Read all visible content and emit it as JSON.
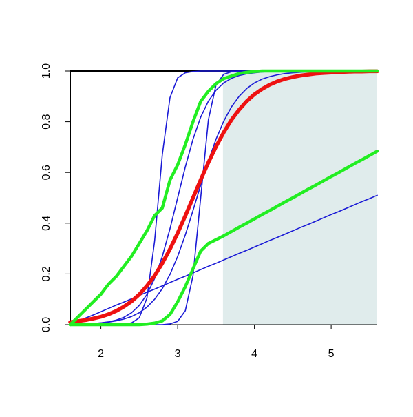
{
  "chart_data": {
    "type": "line",
    "x": [
      1.6,
      1.7,
      1.8,
      1.9,
      2.0,
      2.1,
      2.2,
      2.3,
      2.4,
      2.5,
      2.6,
      2.7,
      2.8,
      2.9,
      3.0,
      3.1,
      3.2,
      3.3,
      3.4,
      3.5,
      3.6,
      3.7,
      3.8,
      3.9,
      4.0,
      4.1,
      4.2,
      4.3,
      4.4,
      4.5,
      4.6,
      4.7,
      4.8,
      4.9,
      5.0,
      5.1,
      5.2,
      5.3,
      5.4,
      5.5,
      5.6
    ],
    "series": [
      {
        "color": "#1a1ad6",
        "line_width": 1.6,
        "values": [
          0,
          0,
          0,
          0,
          0,
          0,
          0,
          0.002,
          0.007,
          0.027,
          0.105,
          0.33,
          0.67,
          0.895,
          0.973,
          0.993,
          0.998,
          1,
          1,
          1,
          1,
          1,
          1,
          1,
          1,
          1,
          1,
          1,
          1,
          1,
          1,
          1,
          1,
          1,
          1,
          1,
          1,
          1,
          1,
          1,
          1
        ]
      },
      {
        "color": "#1a1ad6",
        "line_width": 1.6,
        "values": [
          0,
          0,
          0,
          0,
          0,
          0,
          0,
          0,
          0,
          0,
          0,
          0,
          0,
          0.003,
          0.013,
          0.055,
          0.193,
          0.5,
          0.807,
          0.945,
          0.987,
          0.997,
          1,
          1,
          1,
          1,
          1,
          1,
          1,
          1,
          1,
          1,
          1,
          1,
          1,
          1,
          1,
          1,
          1,
          1,
          1
        ]
      },
      {
        "color": "#1a1ad6",
        "line_width": 1.6,
        "values": [
          0.001,
          0.0015,
          0.0025,
          0.004,
          0.007,
          0.011,
          0.018,
          0.029,
          0.047,
          0.076,
          0.119,
          0.182,
          0.269,
          0.378,
          0.5,
          0.622,
          0.731,
          0.818,
          0.881,
          0.924,
          0.953,
          0.971,
          0.982,
          0.989,
          0.993,
          0.996,
          0.998,
          0.999,
          1,
          1,
          1,
          1,
          1,
          1,
          1,
          1,
          1,
          1,
          1,
          1,
          1
        ]
      },
      {
        "color": "#1a1ad6",
        "line_width": 1.6,
        "values": [
          0.001,
          0.002,
          0.003,
          0.0045,
          0.007,
          0.01,
          0.015,
          0.022,
          0.032,
          0.047,
          0.069,
          0.1,
          0.142,
          0.198,
          0.269,
          0.354,
          0.45,
          0.55,
          0.646,
          0.731,
          0.802,
          0.858,
          0.9,
          0.931,
          0.953,
          0.968,
          0.978,
          0.985,
          0.99,
          0.993,
          0.995,
          0.997,
          0.998,
          0.999,
          0.999,
          1,
          1,
          1,
          1,
          1,
          1
        ]
      },
      {
        "color": "#1a1ad6",
        "line_width": 1.6,
        "values": [
          0,
          0.013,
          0.026,
          0.038,
          0.051,
          0.064,
          0.077,
          0.089,
          0.102,
          0.115,
          0.128,
          0.14,
          0.153,
          0.166,
          0.179,
          0.191,
          0.204,
          0.217,
          0.23,
          0.242,
          0.255,
          0.268,
          0.281,
          0.293,
          0.306,
          0.319,
          0.332,
          0.344,
          0.357,
          0.37,
          0.383,
          0.395,
          0.408,
          0.421,
          0.434,
          0.446,
          0.459,
          0.472,
          0.485,
          0.497,
          0.51
        ]
      },
      {
        "color": "#ee1111",
        "line_width": 5.5,
        "values": [
          0.01,
          0.014,
          0.018,
          0.024,
          0.031,
          0.041,
          0.054,
          0.071,
          0.092,
          0.119,
          0.153,
          0.193,
          0.242,
          0.298,
          0.361,
          0.429,
          0.5,
          0.571,
          0.639,
          0.702,
          0.758,
          0.807,
          0.847,
          0.881,
          0.908,
          0.929,
          0.946,
          0.959,
          0.969,
          0.976,
          0.982,
          0.986,
          0.99,
          0.992,
          0.994,
          0.996,
          0.997,
          0.998,
          0.998,
          0.999,
          0.999
        ]
      },
      {
        "color": "#22ee22",
        "line_width": 4.5,
        "values": [
          0,
          0.03,
          0.06,
          0.09,
          0.12,
          0.16,
          0.19,
          0.23,
          0.27,
          0.32,
          0.37,
          0.43,
          0.46,
          0.57,
          0.63,
          0.71,
          0.8,
          0.88,
          0.92,
          0.95,
          0.97,
          0.98,
          0.99,
          0.995,
          0.998,
          1,
          1,
          1,
          1,
          1,
          1,
          1,
          1,
          1,
          1,
          1,
          1,
          1,
          1,
          1,
          1
        ]
      },
      {
        "color": "#22ee22",
        "line_width": 4.5,
        "values": [
          0,
          0,
          0,
          0,
          0,
          0,
          0,
          0,
          0,
          0,
          0.002,
          0.006,
          0.015,
          0.04,
          0.09,
          0.15,
          0.22,
          0.29,
          0.32,
          0.335,
          0.35,
          0.367,
          0.384,
          0.4,
          0.417,
          0.434,
          0.45,
          0.467,
          0.484,
          0.5,
          0.517,
          0.534,
          0.55,
          0.567,
          0.584,
          0.6,
          0.617,
          0.634,
          0.65,
          0.667,
          0.684
        ]
      }
    ],
    "shaded_region": {
      "x": [
        3.59,
        5.6
      ],
      "color": "#e0ecec"
    },
    "xlim": [
      1.6,
      5.6
    ],
    "ylim": [
      0,
      1
    ],
    "xticks": [
      2,
      3,
      4,
      5
    ],
    "yticks": [
      {
        "value": 0,
        "label": "0.0"
      },
      0.2,
      0.4,
      0.6,
      0.8,
      {
        "value": 1,
        "label": "1.0"
      }
    ]
  }
}
